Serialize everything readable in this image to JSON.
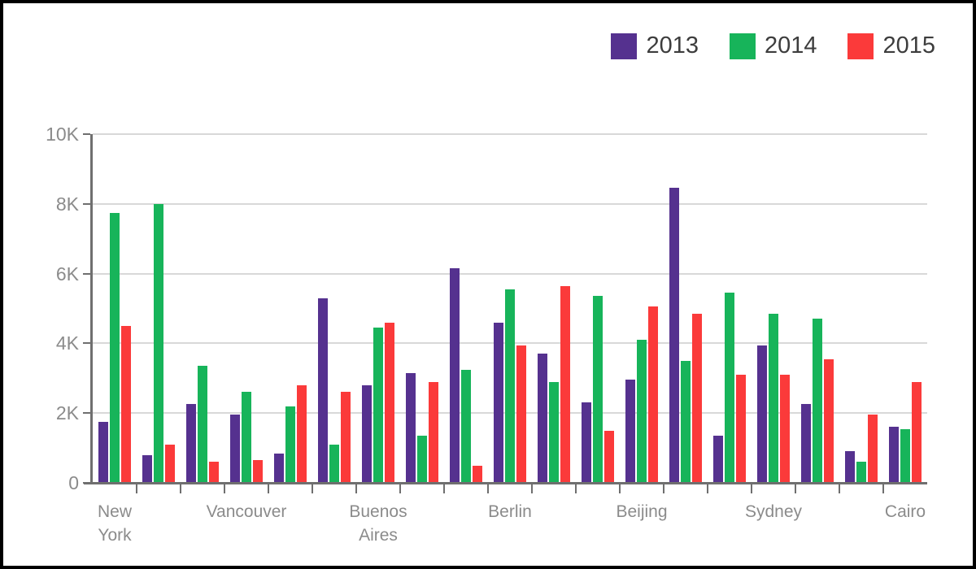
{
  "chart_data": {
    "type": "bar",
    "title": "",
    "xlabel": "",
    "ylabel": "",
    "ylim": [
      0,
      10000
    ],
    "grid": "horizontal",
    "legend_position": "top-right",
    "x_label_step": 3,
    "yticks": [
      {
        "value": 0,
        "label": "0"
      },
      {
        "value": 2000,
        "label": "2K"
      },
      {
        "value": 4000,
        "label": "4K"
      },
      {
        "value": 6000,
        "label": "6K"
      },
      {
        "value": 8000,
        "label": "8K"
      },
      {
        "value": 10000,
        "label": "10K"
      }
    ],
    "categories": [
      "New York",
      "",
      "",
      "Vancouver",
      "",
      "",
      "Buenos Aires",
      "",
      "",
      "Berlin",
      "",
      "",
      "Beijing",
      "",
      "",
      "Sydney",
      "",
      "",
      "Cairo"
    ],
    "series": [
      {
        "name": "2013",
        "color": "#55318f",
        "values": [
          1750,
          800,
          2250,
          1950,
          850,
          5300,
          2800,
          3150,
          6150,
          4600,
          3700,
          2300,
          2950,
          8450,
          1350,
          3950,
          2250,
          900,
          1600
        ]
      },
      {
        "name": "2014",
        "color": "#17b45a",
        "values": [
          7750,
          8000,
          3350,
          2600,
          2200,
          1100,
          4450,
          1350,
          3250,
          5550,
          2900,
          5350,
          4100,
          3500,
          5450,
          4850,
          4700,
          600,
          1550
        ]
      },
      {
        "name": "2015",
        "color": "#fb3a3a",
        "values": [
          4500,
          1100,
          600,
          650,
          2800,
          2600,
          4600,
          2900,
          500,
          3950,
          5650,
          1500,
          5050,
          4850,
          3100,
          3100,
          3550,
          1950,
          2900
        ]
      }
    ],
    "colors": {
      "axis_line": "#6f6f6f",
      "grid_line": "#d8d8d8",
      "axis_text": "#8b8b8b",
      "legend_text": "#3d3d3d"
    }
  }
}
